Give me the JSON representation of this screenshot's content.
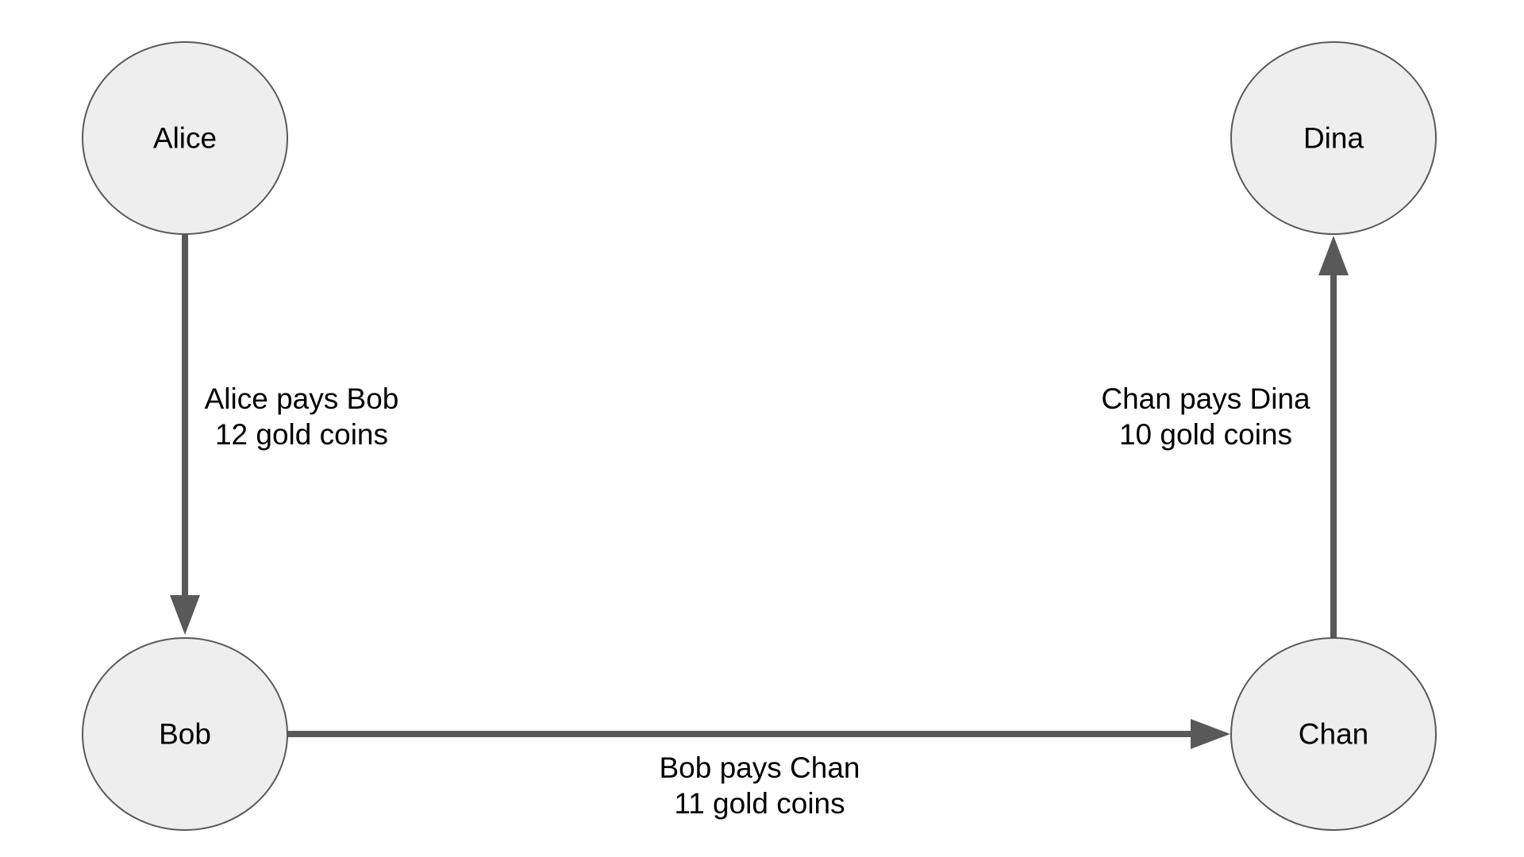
{
  "theme": {
    "node_fill": "#eeeeee",
    "node_stroke": "#595959",
    "edge_color": "#595959",
    "text_color": "#000000"
  },
  "nodes": {
    "alice": {
      "label": "Alice"
    },
    "dina": {
      "label": "Dina"
    },
    "bob": {
      "label": "Bob"
    },
    "chan": {
      "label": "Chan"
    }
  },
  "edges": {
    "alice_bob": {
      "from": "Alice",
      "to": "Bob",
      "line1": "Alice pays Bob",
      "line2": "12 gold coins"
    },
    "bob_chan": {
      "from": "Bob",
      "to": "Chan",
      "line1": "Bob pays Chan",
      "line2": "11 gold coins"
    },
    "chan_dina": {
      "from": "Chan",
      "to": "Dina",
      "line1": "Chan pays Dina",
      "line2": "10 gold coins"
    }
  }
}
